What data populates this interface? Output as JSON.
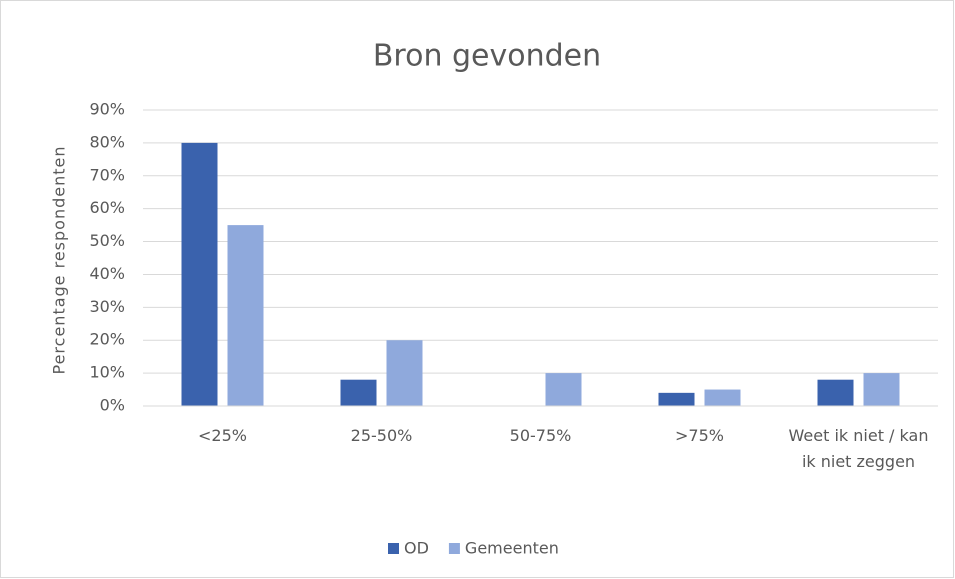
{
  "chart_data": {
    "type": "bar",
    "title": "Bron gevonden",
    "y_label": "Percentage respondenten",
    "categories": [
      "<25%",
      "25-50%",
      "50-75%",
      ">75%",
      "Weet ik niet / kan ik niet zeggen"
    ],
    "series": [
      {
        "name": "OD",
        "color": "#3a62ad",
        "values": [
          80,
          8,
          0,
          4,
          8
        ]
      },
      {
        "name": "Gemeenten",
        "color": "#8fa9dc",
        "values": [
          55,
          20,
          10,
          5,
          10
        ]
      }
    ],
    "ylim": [
      0,
      90
    ],
    "yticks": [
      {
        "value": 0,
        "label": "0%"
      },
      {
        "value": 10,
        "label": "10%"
      },
      {
        "value": 20,
        "label": "20%"
      },
      {
        "value": 30,
        "label": "30%"
      },
      {
        "value": 40,
        "label": "40%"
      },
      {
        "value": 50,
        "label": "50%"
      },
      {
        "value": 60,
        "label": "60%"
      },
      {
        "value": 70,
        "label": "70%"
      },
      {
        "value": 80,
        "label": "80%"
      },
      {
        "value": 90,
        "label": "90%"
      }
    ],
    "grid": true,
    "legend": "bottom"
  }
}
